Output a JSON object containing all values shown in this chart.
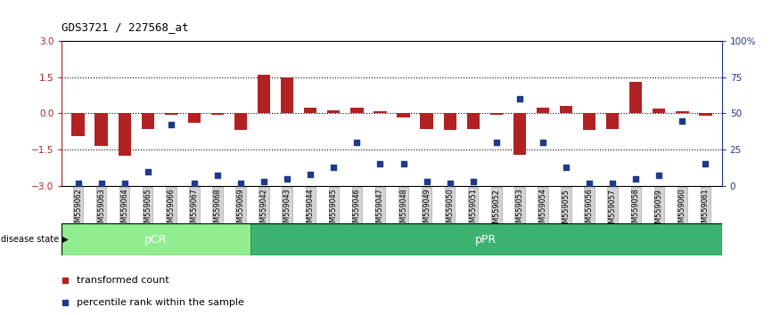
{
  "title": "GDS3721 / 227568_at",
  "samples": [
    "GSM559062",
    "GSM559063",
    "GSM559064",
    "GSM559065",
    "GSM559066",
    "GSM559067",
    "GSM559068",
    "GSM559069",
    "GSM559042",
    "GSM559043",
    "GSM559044",
    "GSM559045",
    "GSM559046",
    "GSM559047",
    "GSM559048",
    "GSM559049",
    "GSM559050",
    "GSM559051",
    "GSM559052",
    "GSM559053",
    "GSM559054",
    "GSM559055",
    "GSM559056",
    "GSM559057",
    "GSM559058",
    "GSM559059",
    "GSM559060",
    "GSM559061"
  ],
  "bar_values": [
    -0.95,
    -1.35,
    -1.75,
    -0.65,
    -0.05,
    -0.38,
    -0.05,
    -0.7,
    1.6,
    1.5,
    0.25,
    0.12,
    0.22,
    0.1,
    -0.18,
    -0.65,
    -0.7,
    -0.65,
    -0.05,
    -1.7,
    0.25,
    0.3,
    -0.7,
    -0.65,
    1.3,
    0.2,
    0.1,
    -0.1
  ],
  "dot_values_pct": [
    2,
    2,
    2,
    10,
    42,
    2,
    7,
    2,
    3,
    5,
    8,
    13,
    30,
    15,
    15,
    3,
    2,
    3,
    30,
    60,
    30,
    13,
    2,
    2,
    5,
    7,
    45,
    15
  ],
  "pCR_count": 8,
  "pPR_count": 20,
  "bar_color": "#b22222",
  "dot_color": "#1e3a8a",
  "background_color": "#ffffff",
  "ylim": [
    -3,
    3
  ],
  "yticks": [
    -3,
    -1.5,
    0,
    1.5,
    3
  ],
  "right_yticks": [
    0,
    25,
    50,
    75,
    100
  ],
  "right_ylim": [
    0,
    100
  ],
  "dotted_lines": [
    -1.5,
    0,
    1.5
  ],
  "pCR_color": "#90ee90",
  "pPR_color": "#3cb371",
  "label_bar": "transformed count",
  "label_dot": "percentile rank within the sample",
  "cell_bg": "#d3d3d3",
  "cell_edge": "#aaaaaa"
}
